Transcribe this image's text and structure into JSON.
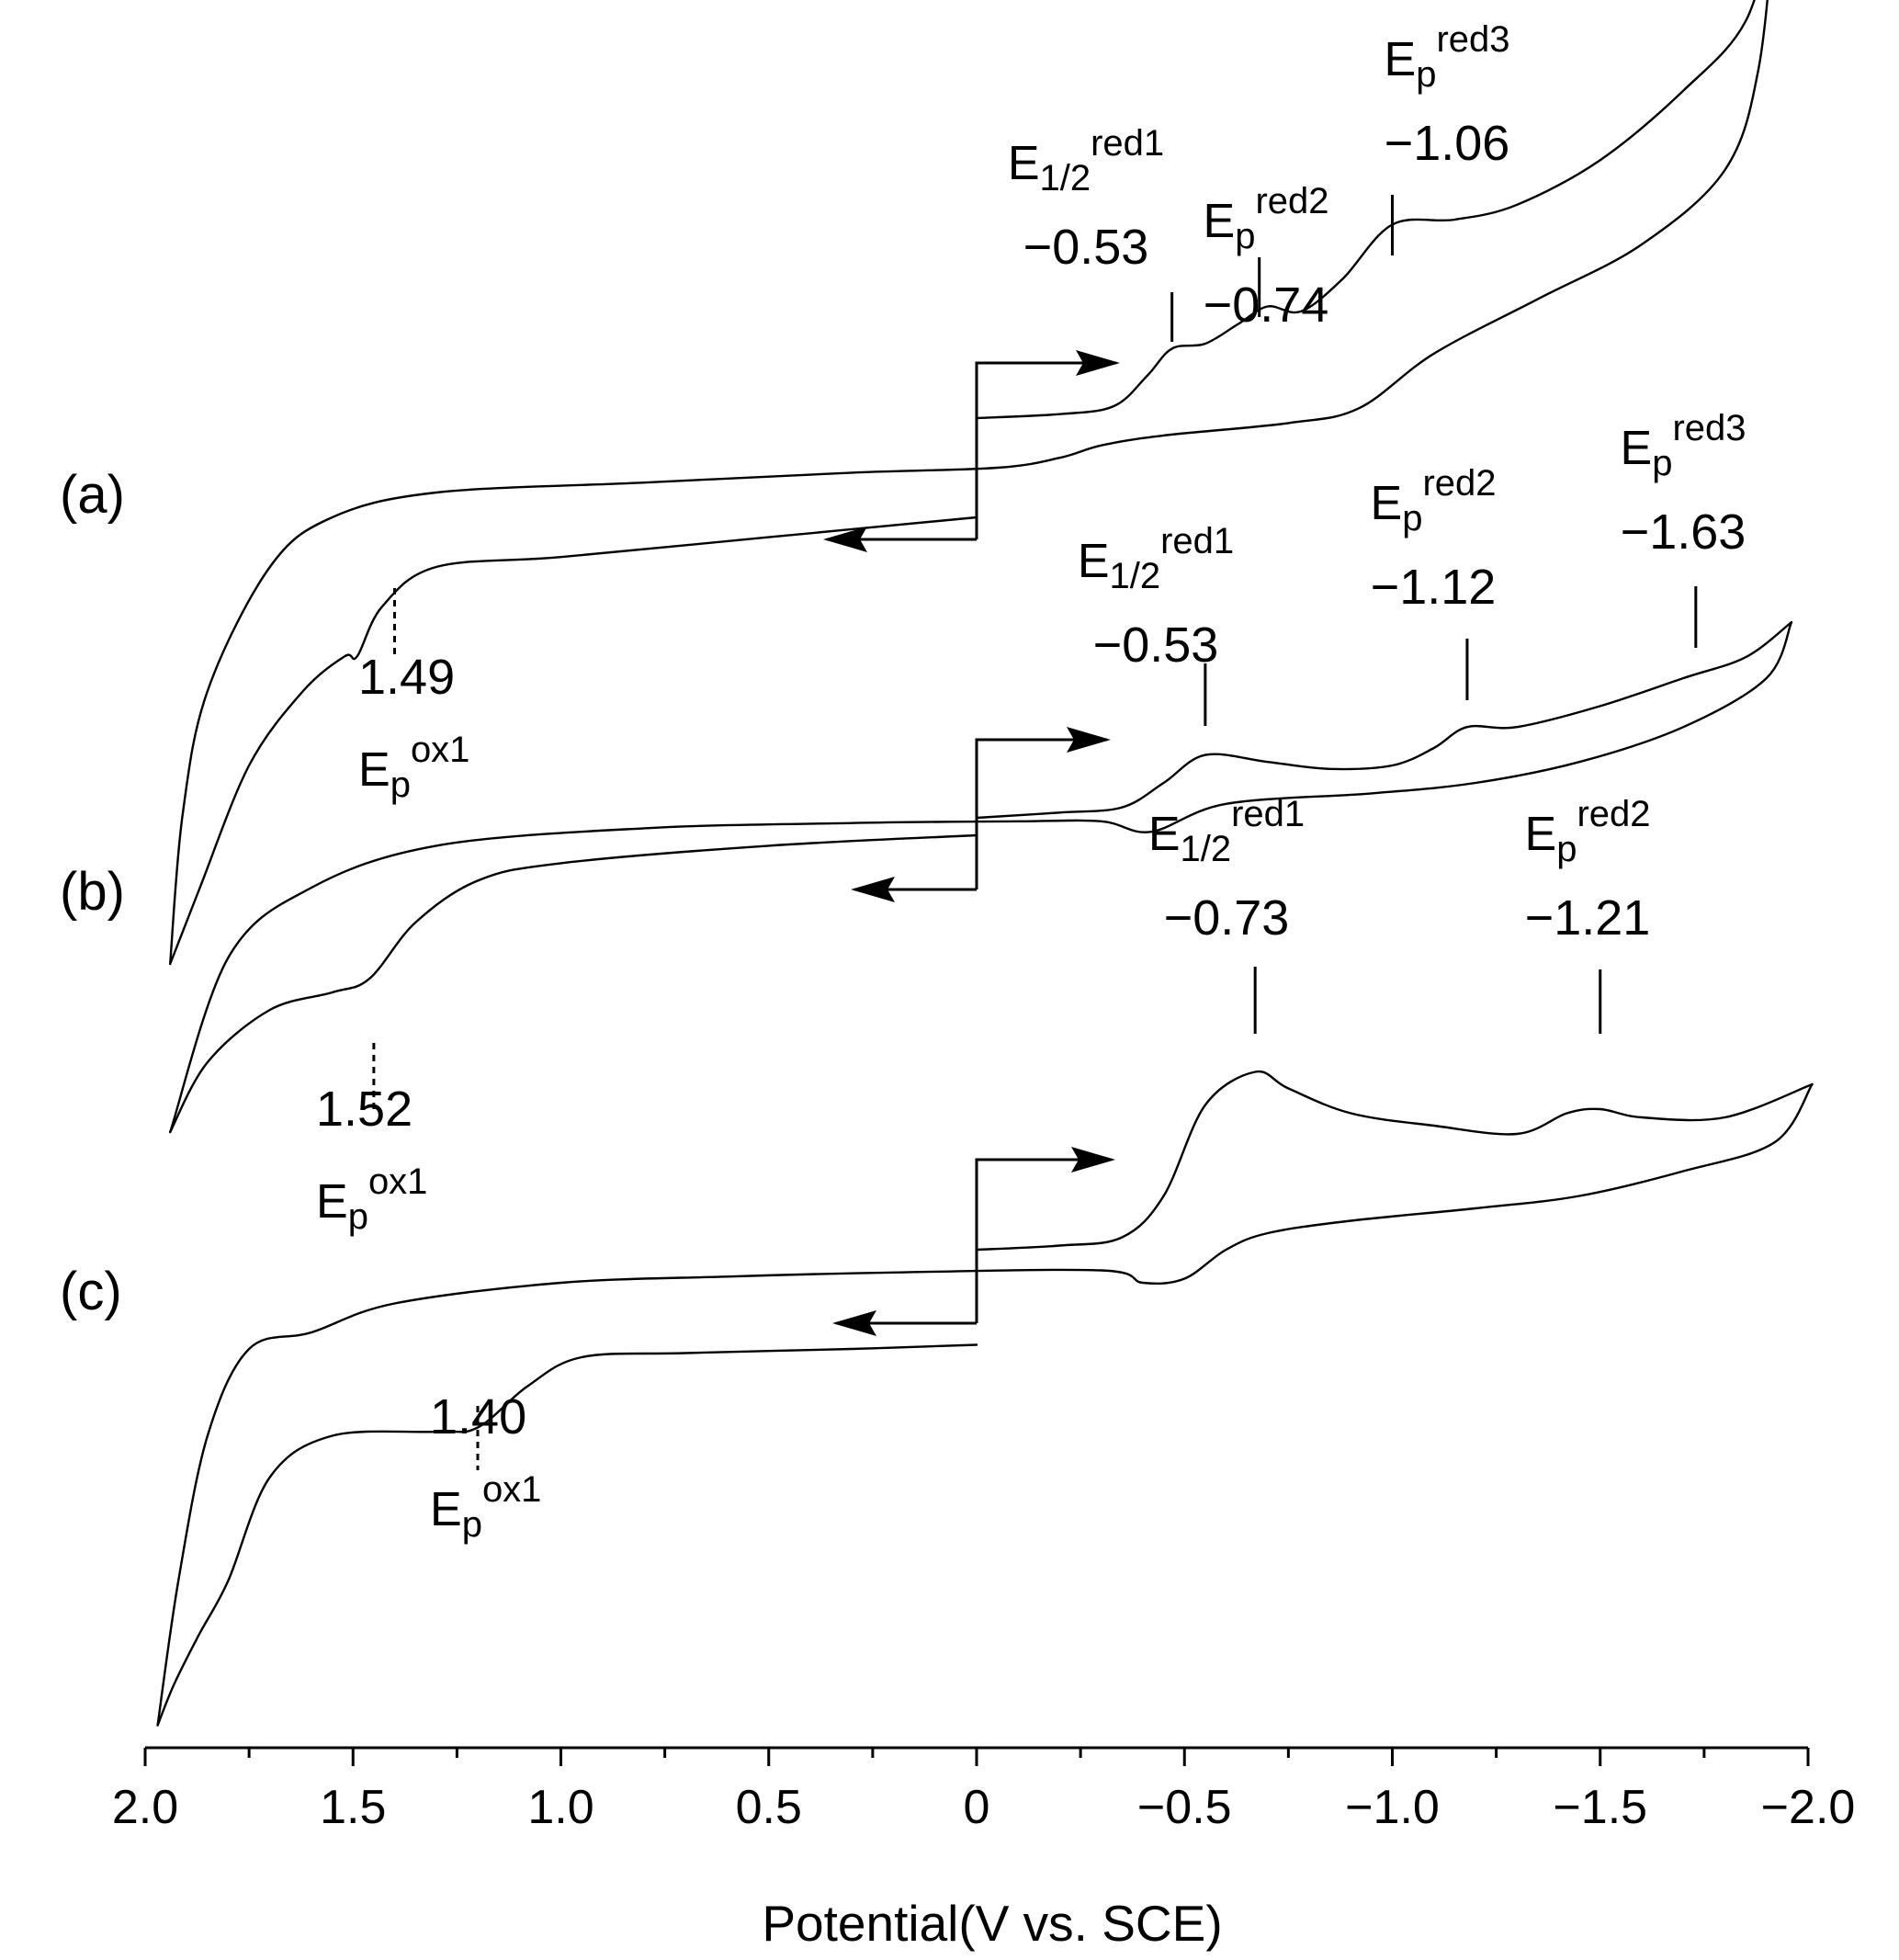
{
  "chart_data": {
    "type": "line",
    "title": "",
    "xlabel": "Potential(V vs. SCE)",
    "ylabel": "",
    "x_axis_reversed": true,
    "xlim": [
      2.0,
      -2.0
    ],
    "xticks": [
      2.0,
      1.5,
      1.0,
      0.5,
      0,
      -0.5,
      -1.0,
      -1.5,
      -2.0
    ],
    "xtick_labels": [
      "2.0",
      "1.5",
      "1.0",
      "0.5",
      "0",
      "−0.5",
      "−1.0",
      "−1.5",
      "−2.0"
    ],
    "y_axis_shown": false,
    "grid": false,
    "series": [
      {
        "panel": "(a)",
        "sweep_start": 0,
        "vertex_negative": -1.92,
        "vertex_positive": 1.94,
        "forward_branch": [
          [
            0,
            0.0
          ],
          [
            -0.2,
            0.08
          ],
          [
            -0.33,
            0.24
          ],
          [
            -0.41,
            0.85
          ],
          [
            -0.47,
            1.4
          ],
          [
            -0.55,
            1.5
          ],
          [
            -0.63,
            1.9
          ],
          [
            -0.7,
            2.25
          ],
          [
            -0.78,
            2.15
          ],
          [
            -0.88,
            2.8
          ],
          [
            -1.0,
            3.9
          ],
          [
            -1.15,
            4.0
          ],
          [
            -1.3,
            4.3
          ],
          [
            -1.5,
            5.2
          ],
          [
            -1.7,
            6.6
          ],
          [
            -1.85,
            8.0
          ],
          [
            -1.92,
            10.1
          ]
        ],
        "reverse_branch": [
          [
            -1.92,
            10.1
          ],
          [
            -1.88,
            7.0
          ],
          [
            -1.8,
            5.0
          ],
          [
            -1.6,
            3.5
          ],
          [
            -1.35,
            2.4
          ],
          [
            -1.1,
            1.3
          ],
          [
            -0.92,
            0.2
          ],
          [
            -0.75,
            -0.1
          ],
          [
            -0.45,
            -0.35
          ],
          [
            -0.3,
            -0.55
          ],
          [
            -0.2,
            -0.8
          ],
          [
            -0.05,
            -1.0
          ],
          [
            0.3,
            -1.1
          ],
          [
            0.8,
            -1.3
          ],
          [
            1.3,
            -1.5
          ],
          [
            1.55,
            -2.0
          ],
          [
            1.7,
            -3.0
          ],
          [
            1.85,
            -5.5
          ],
          [
            1.91,
            -8.0
          ],
          [
            1.94,
            -11.0
          ]
        ],
        "return_branch": [
          [
            1.94,
            -11.0
          ],
          [
            1.87,
            -9.5
          ],
          [
            1.75,
            -7.0
          ],
          [
            1.62,
            -5.5
          ],
          [
            1.52,
            -4.8
          ],
          [
            1.49,
            -4.8
          ],
          [
            1.43,
            -3.8
          ],
          [
            1.3,
            -3.0
          ],
          [
            1.0,
            -2.8
          ],
          [
            0.5,
            -2.4
          ],
          [
            0.0,
            -2.0
          ]
        ],
        "annotations": [
          {
            "symbol": "E",
            "sub": "1/2",
            "sup": "red1",
            "value": "−0.53",
            "potential": -0.47,
            "current": 1.4
          },
          {
            "symbol": "E",
            "sub": "p",
            "sup": "red2",
            "value": "−0.74",
            "potential": -0.68,
            "current": 2.2
          },
          {
            "symbol": "E",
            "sub": "p",
            "sup": "red3",
            "value": "−1.06",
            "potential": -1.0,
            "current": 3.9
          },
          {
            "symbol": "E",
            "sub": "p",
            "sup": "ox1",
            "value": "1.49",
            "potential": 1.4,
            "current": -4.8
          }
        ]
      },
      {
        "panel": "(b)",
        "sweep_start": 0,
        "vertex_negative": -1.96,
        "vertex_positive": 1.94,
        "forward_branch": [
          [
            0,
            0.0
          ],
          [
            -0.2,
            0.15
          ],
          [
            -0.35,
            0.3
          ],
          [
            -0.45,
            1.0
          ],
          [
            -0.55,
            1.8
          ],
          [
            -0.7,
            1.6
          ],
          [
            -0.85,
            1.4
          ],
          [
            -1.0,
            1.5
          ],
          [
            -1.1,
            2.0
          ],
          [
            -1.18,
            2.6
          ],
          [
            -1.3,
            2.6
          ],
          [
            -1.5,
            3.2
          ],
          [
            -1.7,
            4.0
          ],
          [
            -1.85,
            4.6
          ],
          [
            -1.96,
            5.6
          ]
        ],
        "reverse_branch": [
          [
            -1.96,
            5.6
          ],
          [
            -1.9,
            4.0
          ],
          [
            -1.7,
            2.6
          ],
          [
            -1.45,
            1.6
          ],
          [
            -1.2,
            1.0
          ],
          [
            -0.95,
            0.7
          ],
          [
            -0.6,
            0.4
          ],
          [
            -0.42,
            -0.4
          ],
          [
            -0.3,
            -0.1
          ],
          [
            -0.1,
            -0.1
          ],
          [
            0.3,
            -0.15
          ],
          [
            0.8,
            -0.3
          ],
          [
            1.3,
            -0.8
          ],
          [
            1.6,
            -2.0
          ],
          [
            1.8,
            -4.0
          ],
          [
            1.94,
            -9.0
          ]
        ],
        "return_branch": [
          [
            1.94,
            -9.0
          ],
          [
            1.85,
            -7.0
          ],
          [
            1.7,
            -5.5
          ],
          [
            1.55,
            -5.0
          ],
          [
            1.46,
            -4.6
          ],
          [
            1.35,
            -3.0
          ],
          [
            1.2,
            -1.8
          ],
          [
            1.0,
            -1.3
          ],
          [
            0.5,
            -0.8
          ],
          [
            0.0,
            -0.5
          ]
        ],
        "annotations": [
          {
            "symbol": "E",
            "sub": "1/2",
            "sup": "red1",
            "value": "−0.53",
            "potential": -0.55,
            "current": 1.8
          },
          {
            "symbol": "E",
            "sub": "p",
            "sup": "red2",
            "value": "−1.12",
            "potential": -1.18,
            "current": 2.6
          },
          {
            "symbol": "E",
            "sub": "p",
            "sup": "red3",
            "value": "−1.63",
            "potential": -1.73,
            "current": 4.1
          },
          {
            "symbol": "E",
            "sub": "p",
            "sup": "ox1",
            "value": "1.52",
            "potential": 1.45,
            "current": -4.6
          }
        ]
      },
      {
        "panel": "(c)",
        "sweep_start": 0,
        "vertex_negative": -2.01,
        "vertex_positive": 1.97,
        "forward_branch": [
          [
            0,
            0.0
          ],
          [
            -0.2,
            0.1
          ],
          [
            -0.35,
            0.3
          ],
          [
            -0.45,
            1.3
          ],
          [
            -0.55,
            3.5
          ],
          [
            -0.67,
            4.3
          ],
          [
            -0.75,
            3.9
          ],
          [
            -0.9,
            3.3
          ],
          [
            -1.1,
            3.0
          ],
          [
            -1.3,
            2.8
          ],
          [
            -1.42,
            3.3
          ],
          [
            -1.5,
            3.4
          ],
          [
            -1.6,
            3.2
          ],
          [
            -1.8,
            3.2
          ],
          [
            -2.01,
            4.0
          ]
        ],
        "reverse_branch": [
          [
            -2.01,
            4.0
          ],
          [
            -1.92,
            2.6
          ],
          [
            -1.7,
            1.9
          ],
          [
            -1.45,
            1.3
          ],
          [
            -1.2,
            1.0
          ],
          [
            -0.9,
            0.7
          ],
          [
            -0.7,
            0.4
          ],
          [
            -0.6,
            0.0
          ],
          [
            -0.5,
            -0.7
          ],
          [
            -0.4,
            -0.8
          ],
          [
            -0.3,
            -0.5
          ],
          [
            0.2,
            -0.55
          ],
          [
            0.6,
            -0.65
          ],
          [
            1.0,
            -0.8
          ],
          [
            1.4,
            -1.3
          ],
          [
            1.6,
            -2.0
          ],
          [
            1.75,
            -2.4
          ],
          [
            1.85,
            -4.5
          ],
          [
            1.92,
            -8.0
          ],
          [
            1.97,
            -11.5
          ]
        ],
        "return_branch": [
          [
            1.97,
            -11.5
          ],
          [
            1.93,
            -10.5
          ],
          [
            1.87,
            -9.3
          ],
          [
            1.8,
            -8.0
          ],
          [
            1.7,
            -5.5
          ],
          [
            1.55,
            -4.5
          ],
          [
            1.3,
            -4.4
          ],
          [
            1.2,
            -4.3
          ],
          [
            1.08,
            -3.3
          ],
          [
            0.95,
            -2.6
          ],
          [
            0.7,
            -2.5
          ],
          [
            0.3,
            -2.4
          ],
          [
            0.0,
            -2.3
          ]
        ],
        "annotations": [
          {
            "symbol": "E",
            "sub": "1/2",
            "sup": "red1",
            "value": "−0.73",
            "potential": -0.67,
            "current": 4.3
          },
          {
            "symbol": "E",
            "sub": "p",
            "sup": "red2",
            "value": "−1.21",
            "potential": -1.5,
            "current": 3.4
          },
          {
            "symbol": "E",
            "sub": "p",
            "sup": "ox1",
            "value": "1.40",
            "potential": 1.2,
            "current": -4.3
          }
        ]
      }
    ]
  }
}
